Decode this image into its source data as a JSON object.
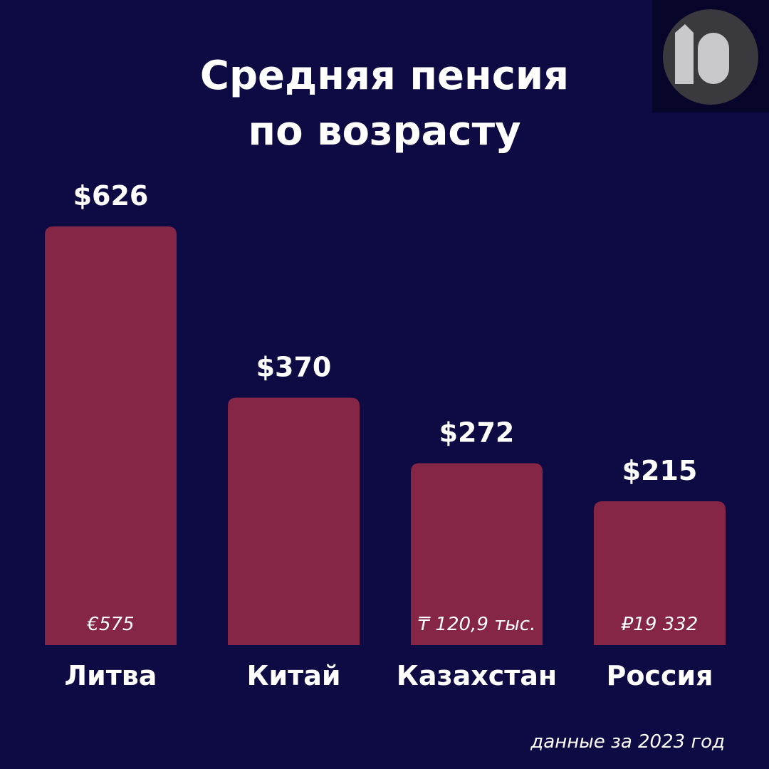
{
  "chart_data": {
    "type": "bar",
    "title_lines": [
      "Средняя пенсия",
      "по возрасту"
    ],
    "categories": [
      "Литва",
      "Китай",
      "Казахстан",
      "Россия"
    ],
    "values": [
      626,
      370,
      272,
      215
    ],
    "value_labels": [
      "$626",
      "$370",
      "$272",
      "$215"
    ],
    "local_labels": [
      "€575",
      "₸ 120,9 тыс.",
      "₽19 332"
    ],
    "local_label_categories": [
      0,
      2,
      3
    ],
    "ylim": [
      0,
      626
    ],
    "grid": false,
    "footnote": "данные за 2023 год"
  },
  "colors": {
    "background": "#0e0a44",
    "bar": "#852646",
    "logo_bg": "#07052a",
    "logo_circle": "#3a3a3e",
    "logo_glyph": "#c9c9cb"
  },
  "logo": {
    "icon": "ten-logo-icon"
  }
}
